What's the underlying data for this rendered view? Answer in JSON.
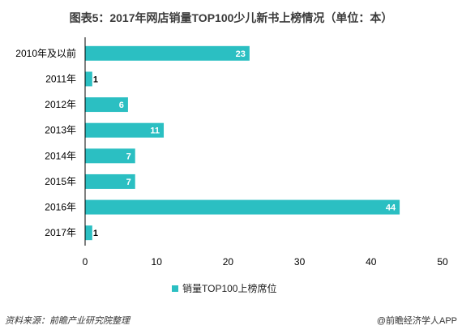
{
  "chart_data": {
    "type": "bar",
    "orientation": "horizontal",
    "title": "图表5：2017年网店销量TOP100少儿新书上榜情况（单位：本）",
    "categories": [
      "2010年及以前",
      "2011年",
      "2012年",
      "2013年",
      "2014年",
      "2015年",
      "2016年",
      "2017年"
    ],
    "series": [
      {
        "name": "销量TOP100上榜席位",
        "values": [
          23,
          1,
          6,
          11,
          7,
          7,
          44,
          1
        ]
      }
    ],
    "xlim": [
      0,
      50
    ],
    "xticks": [
      0,
      10,
      20,
      30,
      40,
      50
    ],
    "grid": false,
    "legend_position": "bottom",
    "colors": {
      "bar": "#2bbfc2"
    }
  },
  "footer": {
    "source": "资料来源：前瞻产业研究院整理",
    "brand": "@前瞻经济学人APP"
  }
}
